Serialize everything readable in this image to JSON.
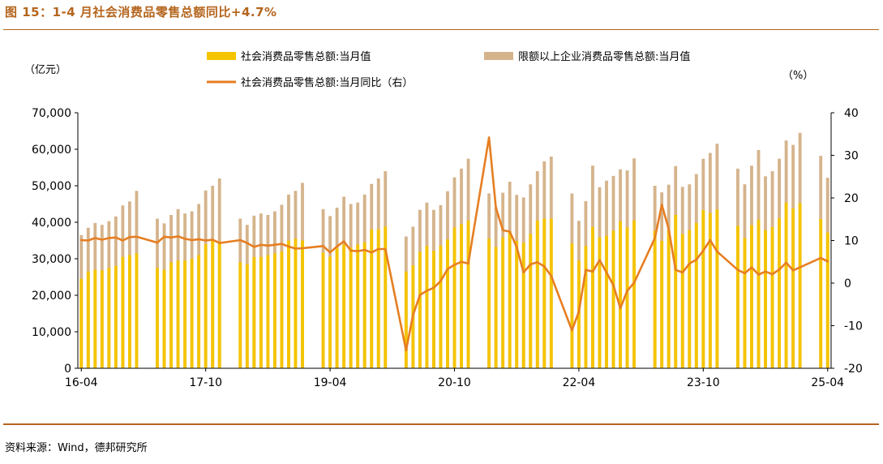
{
  "page": {
    "title": "图 15：1-4 月社会消费品零售总额同比+4.7%",
    "source": "资料来源：Wind，德邦研究所"
  },
  "chart_data": {
    "type": "bar",
    "left_axis_unit": "（亿元）",
    "right_axis_unit": "（%）",
    "ylim_left": [
      0,
      70000
    ],
    "yticks_left": [
      "70,000",
      "60,000",
      "50,000",
      "40,000",
      "30,000",
      "20,000",
      "10,000",
      "0"
    ],
    "ylim_right": [
      -20,
      40
    ],
    "yticks_right": [
      "40",
      "30",
      "20",
      "10",
      "0",
      "-10",
      "-20"
    ],
    "x_tick_labels": [
      "16-04",
      "17-10",
      "19-04",
      "20-10",
      "22-04",
      "23-10",
      "25-04"
    ],
    "colors": {
      "retail_total": "#f5c400",
      "above_scale": "#d5b48c",
      "yoy": "#e67e22"
    },
    "legend": {
      "retail_total": "社会消费品零售总额:当月值",
      "above_scale": "限额以上企业消费品零售总额:当月值",
      "yoy": "社会消费品零售总额:当月同比（右）"
    },
    "x": [
      "16-04",
      "16-05",
      "16-06",
      "16-07",
      "16-08",
      "16-09",
      "16-10",
      "16-11",
      "16-12",
      "17-01",
      "17-02",
      "17-03",
      "17-04",
      "17-05",
      "17-06",
      "17-07",
      "17-08",
      "17-09",
      "17-10",
      "17-11",
      "17-12",
      "18-01",
      "18-02",
      "18-03",
      "18-04",
      "18-05",
      "18-06",
      "18-07",
      "18-08",
      "18-09",
      "18-10",
      "18-11",
      "18-12",
      "19-01",
      "19-02",
      "19-03",
      "19-04",
      "19-05",
      "19-06",
      "19-07",
      "19-08",
      "19-09",
      "19-10",
      "19-11",
      "19-12",
      "20-01",
      "20-02",
      "20-03",
      "20-04",
      "20-05",
      "20-06",
      "20-07",
      "20-08",
      "20-09",
      "20-10",
      "20-11",
      "20-12",
      "21-01",
      "21-02",
      "21-03",
      "21-04",
      "21-05",
      "21-06",
      "21-07",
      "21-08",
      "21-09",
      "21-10",
      "21-11",
      "21-12",
      "22-01",
      "22-02",
      "22-03",
      "22-04",
      "22-05",
      "22-06",
      "22-07",
      "22-08",
      "22-09",
      "22-10",
      "22-11",
      "22-12",
      "23-01",
      "23-02",
      "23-03",
      "23-04",
      "23-05",
      "23-06",
      "23-07",
      "23-08",
      "23-09",
      "23-10",
      "23-11",
      "23-12",
      "24-01",
      "24-02",
      "24-03",
      "24-04",
      "24-05",
      "24-06",
      "24-07",
      "24-08",
      "24-09",
      "24-10",
      "24-11",
      "24-12",
      "25-01",
      "25-02",
      "25-03",
      "25-04"
    ],
    "series": [
      {
        "name": "社会消费品零售总额:当月值",
        "values": [
          24500,
          26500,
          27000,
          26800,
          27500,
          28000,
          30500,
          31000,
          31500,
          null,
          null,
          27500,
          27000,
          29000,
          29500,
          29500,
          30000,
          31000,
          34000,
          35000,
          34800,
          null,
          null,
          29000,
          28500,
          30500,
          30500,
          31000,
          31500,
          32000,
          35000,
          35500,
          35000,
          null,
          null,
          31700,
          30600,
          32900,
          33900,
          33100,
          33900,
          34500,
          38100,
          38100,
          38800,
          null,
          null,
          26500,
          28200,
          31900,
          33500,
          32200,
          33600,
          35300,
          38600,
          39500,
          40500,
          null,
          null,
          35500,
          33200,
          35900,
          37600,
          34900,
          34400,
          36800,
          40500,
          41000,
          41000,
          null,
          null,
          34200,
          29500,
          33500,
          38700,
          35900,
          36300,
          37700,
          40300,
          38600,
          40500,
          null,
          null,
          37700,
          34900,
          37800,
          42000,
          36800,
          37900,
          39800,
          43300,
          42500,
          43500,
          null,
          null,
          39000,
          35700,
          39200,
          40700,
          37800,
          38700,
          41100,
          45400,
          43800,
          45200,
          null,
          null,
          40900,
          37200
        ]
      },
      {
        "name": "限额以上企业消费品零售总额:当月值",
        "values": [
          36500,
          38500,
          39800,
          39300,
          40300,
          41600,
          44600,
          45700,
          48600,
          null,
          null,
          41000,
          39700,
          42000,
          43600,
          42400,
          43000,
          45000,
          48700,
          50000,
          52000,
          null,
          null,
          41000,
          39300,
          41800,
          42400,
          42000,
          43000,
          44800,
          47600,
          48600,
          50800,
          null,
          null,
          43600,
          41700,
          44000,
          47000,
          45000,
          45400,
          47600,
          50500,
          52000,
          54000,
          null,
          null,
          36100,
          38800,
          43400,
          45400,
          43400,
          44700,
          48500,
          52300,
          54700,
          57400,
          null,
          null,
          47900,
          44100,
          48100,
          51100,
          47500,
          46800,
          50400,
          54000,
          56700,
          58000,
          null,
          null,
          47900,
          40400,
          45800,
          55500,
          49600,
          51400,
          52700,
          54500,
          54200,
          57500,
          null,
          null,
          50000,
          48200,
          50300,
          55400,
          49700,
          50400,
          53200,
          57400,
          59000,
          61500,
          null,
          null,
          54700,
          50400,
          55500,
          59800,
          52600,
          54000,
          57400,
          62400,
          61200,
          64500,
          null,
          null,
          58200,
          52200
        ]
      },
      {
        "name": "社会消费品零售总额:当月同比（右）",
        "values": [
          10.1,
          10.0,
          10.6,
          10.2,
          10.6,
          10.7,
          10.0,
          10.8,
          10.9,
          null,
          null,
          9.5,
          10.9,
          10.7,
          11.0,
          10.4,
          10.1,
          10.3,
          10.0,
          10.2,
          9.4,
          null,
          null,
          10.1,
          9.4,
          8.5,
          9.0,
          8.8,
          9.0,
          9.2,
          8.6,
          8.1,
          8.2,
          null,
          null,
          8.7,
          7.2,
          8.6,
          9.8,
          7.6,
          7.5,
          7.8,
          7.2,
          8.0,
          8.0,
          null,
          null,
          -15.8,
          -7.5,
          -2.8,
          -1.8,
          -1.1,
          0.5,
          3.3,
          4.3,
          5.0,
          4.6,
          null,
          null,
          34.2,
          17.7,
          12.4,
          12.1,
          8.5,
          2.5,
          4.4,
          4.9,
          3.9,
          1.7,
          null,
          null,
          -11.1,
          -6.7,
          3.1,
          2.7,
          5.4,
          2.5,
          -0.5,
          -5.9,
          -1.8,
          0.1,
          null,
          null,
          10.6,
          18.4,
          12.7,
          3.1,
          2.5,
          4.6,
          5.5,
          7.6,
          10.1,
          7.4,
          null,
          null,
          3.1,
          2.3,
          3.7,
          2.0,
          2.7,
          2.1,
          3.2,
          4.8,
          3.0,
          3.7,
          null,
          null,
          5.9,
          5.1
        ]
      }
    ]
  }
}
